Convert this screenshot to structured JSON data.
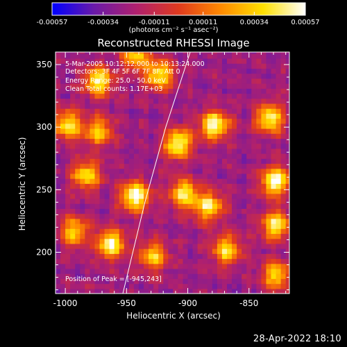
{
  "colorbar": {
    "tick_labels": [
      "-0.00057",
      "-0.00034",
      "-0.00011",
      "0.00011",
      "0.00034",
      "0.00057"
    ],
    "tick_values": [
      -0.00057,
      -0.00034,
      -0.00011,
      0.00011,
      0.00034,
      0.00057
    ],
    "range": [
      -0.00057,
      0.00057
    ],
    "unit_label": "(photons cm⁻² s⁻¹ asec⁻²)",
    "colors": [
      "#0000ff",
      "#6a1aa8",
      "#b0206e",
      "#e03a1e",
      "#ff8a00",
      "#ffe000",
      "#ffffff"
    ]
  },
  "chart_data": {
    "type": "heatmap",
    "title": "Reconstructed RHESSI Image",
    "xlabel": "Heliocentric X (arcsec)",
    "ylabel": "Heliocentric Y (arcsec)",
    "xlim": [
      -1008,
      -817
    ],
    "ylim": [
      167,
      360
    ],
    "x_ticks": [
      -1000,
      -950,
      -900,
      -850
    ],
    "y_ticks": [
      200,
      250,
      300,
      350
    ],
    "x_tick_labels": [
      "-1000",
      "-950",
      "-900",
      "-850"
    ],
    "y_tick_labels": [
      "200",
      "250",
      "300",
      "350"
    ],
    "annotations": [
      "5-Mar-2005 10:12:12.000 to 10:13:24.000",
      "Detectors: 3F 4F 5F 6F 7F 8F, Att 0",
      "Energy Range: 25.0 - 50.0 keV",
      "Clean     Total counts: 1.17E+03"
    ],
    "peak_label": "Position of Peak = [-945,243]",
    "peak_position": [
      -945,
      243
    ],
    "limb_curve": {
      "x": [
        -953,
        -935,
        -918,
        -898
      ],
      "y": [
        167,
        240,
        300,
        360
      ]
    },
    "bright_regions": [
      {
        "x": -975,
        "y": 335,
        "value": 0.00045
      },
      {
        "x": -1000,
        "y": 300,
        "value": 0.0004
      },
      {
        "x": -975,
        "y": 295,
        "value": 0.0003
      },
      {
        "x": -945,
        "y": 243,
        "value": 0.00057
      },
      {
        "x": -985,
        "y": 260,
        "value": 0.00035
      },
      {
        "x": -965,
        "y": 205,
        "value": 0.0005
      },
      {
        "x": -910,
        "y": 285,
        "value": 0.0005
      },
      {
        "x": -905,
        "y": 245,
        "value": 0.0004
      },
      {
        "x": -880,
        "y": 300,
        "value": 0.00052
      },
      {
        "x": -885,
        "y": 235,
        "value": 0.0004
      },
      {
        "x": -830,
        "y": 255,
        "value": 0.00055
      },
      {
        "x": -835,
        "y": 305,
        "value": 0.00045
      },
      {
        "x": -830,
        "y": 220,
        "value": 0.0004
      },
      {
        "x": -925,
        "y": 340,
        "value": 0.0004
      },
      {
        "x": -870,
        "y": 200,
        "value": 0.00035
      },
      {
        "x": -830,
        "y": 180,
        "value": 0.0003
      },
      {
        "x": -995,
        "y": 215,
        "value": 0.0003
      },
      {
        "x": -930,
        "y": 195,
        "value": 0.0003
      },
      {
        "x": -945,
        "y": 355,
        "value": 0.0003
      }
    ]
  },
  "footer": {
    "timestamp": "28-Apr-2022 18:10"
  }
}
